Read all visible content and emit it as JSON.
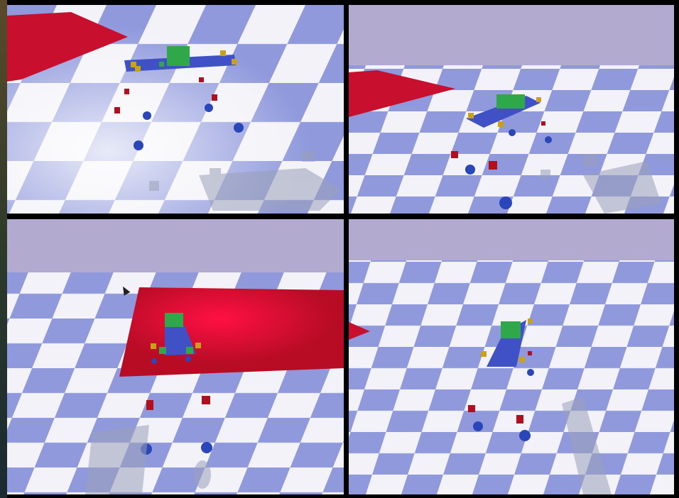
{
  "scene": {
    "sky_color": "#b3abcf",
    "floor_light": "#f2f2f8",
    "floor_dark": "#8f99dc",
    "target_pad_color": "#c8102e",
    "robot": {
      "body_color": "#3f51c4",
      "core_color": "#2fa84a",
      "joint_color": "#c9a21a",
      "foot_color": "#2a46b8",
      "debris_color": "#b0101e"
    }
  },
  "panels": [
    {
      "id": "top-left-view"
    },
    {
      "id": "top-right-view"
    },
    {
      "id": "bottom-left-view"
    },
    {
      "id": "bottom-right-view"
    }
  ],
  "icons": [
    "mouse-cursor-icon"
  ]
}
